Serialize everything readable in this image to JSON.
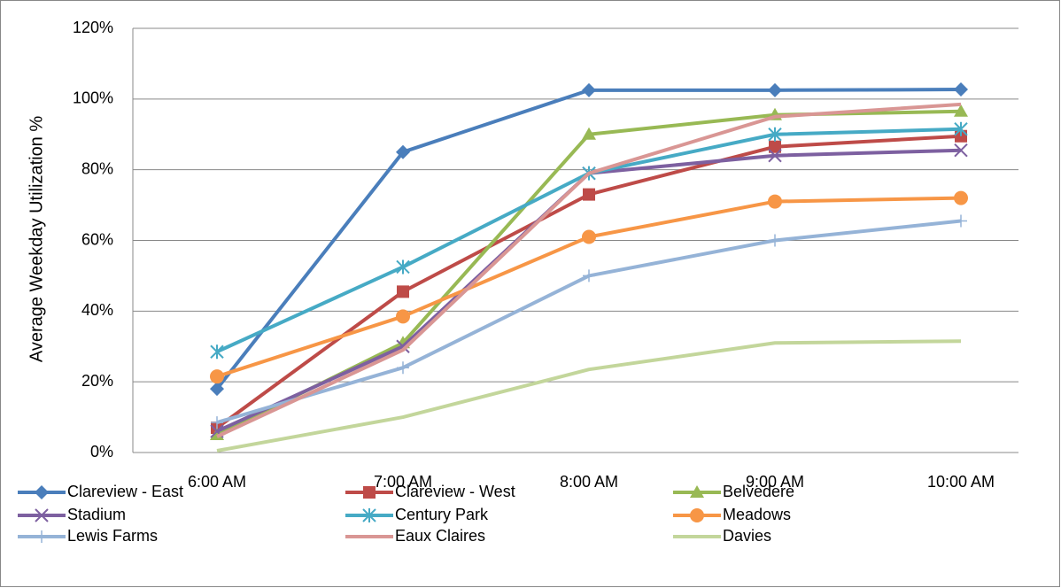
{
  "chart_data": {
    "type": "line",
    "y_label": "Average Weekday Utilization %",
    "categories": [
      "6:00 AM",
      "7:00 AM",
      "8:00 AM",
      "9:00 AM",
      "10:00 AM"
    ],
    "ylim": [
      0,
      120
    ],
    "yticks": [
      {
        "value": 0,
        "label": "0%"
      },
      {
        "value": 20,
        "label": "20%"
      },
      {
        "value": 40,
        "label": "40%"
      },
      {
        "value": 60,
        "label": "60%"
      },
      {
        "value": 80,
        "label": "80%"
      },
      {
        "value": 100,
        "label": "100%"
      },
      {
        "value": 120,
        "label": "120%"
      }
    ],
    "grid": true,
    "legend": "bottom",
    "series": [
      {
        "name": "Clareview - East",
        "color": "#4a7ebb",
        "marker": "diamond",
        "values": [
          18,
          85,
          102.5,
          102.5,
          102.7
        ]
      },
      {
        "name": "Clareview - West",
        "color": "#be4b48",
        "marker": "square",
        "values": [
          7,
          45.5,
          73,
          86.5,
          89.5
        ]
      },
      {
        "name": "Belvedere",
        "color": "#98b954",
        "marker": "triangle",
        "values": [
          5,
          31,
          90,
          95.5,
          96.5
        ]
      },
      {
        "name": "Stadium",
        "color": "#7d60a0",
        "marker": "x",
        "values": [
          6,
          30,
          79,
          84,
          85.5
        ]
      },
      {
        "name": "Century Park",
        "color": "#46aac5",
        "marker": "asterisk",
        "values": [
          28.5,
          52.5,
          79,
          90,
          91.5
        ]
      },
      {
        "name": "Meadows",
        "color": "#f79646",
        "marker": "circle",
        "values": [
          21.5,
          38.5,
          61,
          71,
          72
        ]
      },
      {
        "name": "Lewis Farms",
        "color": "#95b3d7",
        "marker": "plus",
        "values": [
          8.5,
          24,
          50,
          60,
          65.5
        ]
      },
      {
        "name": "Eaux Claires",
        "color": "#d99694",
        "marker": "none",
        "values": [
          4.5,
          29,
          79,
          95,
          98.5
        ]
      },
      {
        "name": "Davies",
        "color": "#c3d69b",
        "marker": "none",
        "values": [
          0.5,
          10,
          23.5,
          31,
          31.5
        ]
      }
    ]
  }
}
